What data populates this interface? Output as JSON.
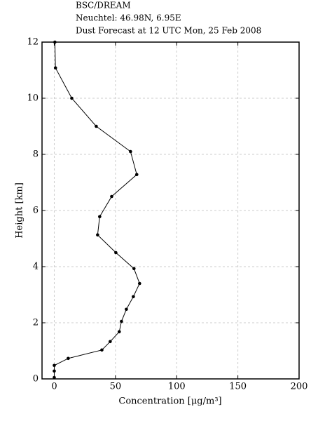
{
  "chart_data": {
    "type": "line",
    "title_lines": [
      "BSC/DREAM",
      "Neuchtel: 46.98N, 6.95E",
      "Dust Forecast at 12 UTC Mon, 25 Feb 2008"
    ],
    "xlabel": "Concentration [μg/m³]",
    "ylabel": "Height [km]",
    "series": [
      {
        "color": "#000000",
        "x": [
          0.5,
          1,
          14.3,
          34.3,
          62.3,
          67.4,
          46.9,
          37.1,
          35.4,
          50.3,
          65.1,
          69.7,
          64.6,
          58.9,
          54.9,
          53.1,
          45.7,
          38.9,
          11.4,
          0,
          0,
          0
        ],
        "y": [
          12,
          11.08,
          10.0,
          9.0,
          8.1,
          7.28,
          6.5,
          5.78,
          5.13,
          4.5,
          3.93,
          3.4,
          2.93,
          2.48,
          2.05,
          1.68,
          1.33,
          1.03,
          0.73,
          0.48,
          0.28,
          0.05
        ]
      }
    ],
    "xlim": [
      -10,
      200
    ],
    "xticks": [
      0,
      50,
      100,
      150,
      200
    ],
    "ylim": [
      0,
      12
    ],
    "yticks": [
      0,
      2,
      4,
      6,
      8,
      10,
      12
    ],
    "grid": true
  }
}
